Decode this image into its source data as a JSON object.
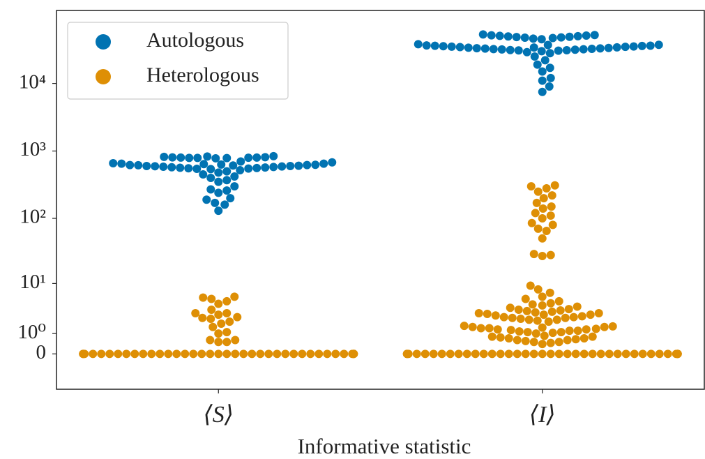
{
  "chart_data": {
    "type": "swarm",
    "x_label": "Informative statistic",
    "categories": [
      "⟨S⟩",
      "⟨I⟩"
    ],
    "yscale": "log1p",
    "ylim": [
      -0.7,
      120000
    ],
    "yticks": [
      0,
      {
        "value": 1,
        "label": "10⁰"
      },
      {
        "value": 10,
        "label": "10¹"
      },
      {
        "value": 100,
        "label": "10²"
      },
      {
        "value": 1000,
        "label": "10³"
      },
      {
        "value": 10000,
        "label": "10⁴"
      }
    ],
    "legend": "upper left",
    "series": [
      {
        "name": "Autologous",
        "color": "#0173b2",
        "values": [
          [
            560,
            565,
            570,
            575,
            580,
            585,
            590,
            595,
            600,
            600,
            605,
            610,
            615,
            620,
            620,
            625,
            630,
            640,
            550,
            555,
            545,
            540,
            650,
            660,
            780,
            790,
            800,
            810,
            820,
            830,
            800,
            790,
            785,
            840,
            805,
            795,
            700,
            680,
            650,
            520,
            500,
            480,
            450,
            420,
            400,
            370,
            350,
            300,
            270,
            260,
            240,
            200,
            190,
            170,
            160,
            130
          ],
          [
            31000,
            31500,
            32000,
            32500,
            33000,
            33500,
            34000,
            34500,
            35000,
            35500,
            36000,
            36500,
            37000,
            30500,
            30000,
            31200,
            32200,
            33200,
            34200,
            35200,
            36200,
            37200,
            30800,
            31800,
            32800,
            33800,
            34800,
            35800,
            29000,
            38000,
            48000,
            49000,
            50000,
            51000,
            52000,
            48500,
            49500,
            50500,
            51500,
            47500,
            47000,
            46000,
            45000,
            53000,
            28000,
            25000,
            22000,
            19000,
            17000,
            15000,
            12000,
            11000,
            9000,
            7500
          ]
        ]
      },
      {
        "name": "Heterologous",
        "color": "#de8f05",
        "values": [
          [
            0,
            0,
            0,
            0,
            0,
            0,
            0,
            0,
            0,
            0,
            0,
            0,
            0,
            0,
            0,
            0,
            0,
            0,
            0,
            0,
            0,
            0,
            0,
            0,
            0,
            0,
            0,
            0,
            0,
            0,
            0,
            0,
            0,
            0,
            0,
            0,
            0,
            0,
            0,
            0,
            0.5,
            0.5,
            0.6,
            0.6,
            1.0,
            1.1,
            1.5,
            1.8,
            2,
            2.3,
            2.4,
            2.5,
            2.8,
            3,
            3,
            3.5,
            4.5,
            5,
            5.5,
            5.8,
            6
          ],
          [
            0,
            0,
            0,
            0,
            0,
            0,
            0,
            0,
            0,
            0,
            0,
            0,
            0,
            0,
            0,
            0,
            0,
            0,
            0,
            0,
            0,
            0,
            0,
            0,
            0,
            0,
            0,
            0,
            0,
            0,
            0,
            0,
            0,
            0,
            0,
            0,
            0,
            0,
            0,
            0,
            0.4,
            0.45,
            0.5,
            0.5,
            0.55,
            0.6,
            0.6,
            0.65,
            0.7,
            0.7,
            0.75,
            0.8,
            0.8,
            0.85,
            1.0,
            1.05,
            1.1,
            1.1,
            1.15,
            1.2,
            1.2,
            1.25,
            1.3,
            1.3,
            1.35,
            1.4,
            1.4,
            1.45,
            1.5,
            1.5,
            1.55,
            1.6,
            2.0,
            2.1,
            2.2,
            2.2,
            2.3,
            2.4,
            2.4,
            2.5,
            2.5,
            2.6,
            2.7,
            2.8,
            2.8,
            2.9,
            3.0,
            3.0,
            3.1,
            3.2,
            3.3,
            3.4,
            3.5,
            3.6,
            3.8,
            4.0,
            4.2,
            4.4,
            4.6,
            5.0,
            5.5,
            6,
            7,
            8,
            9.2,
            27,
            28,
            29,
            50,
            65,
            70,
            80,
            85,
            100,
            110,
            120,
            140,
            150,
            170,
            200,
            220,
            250,
            280,
            300,
            310
          ]
        ]
      }
    ]
  }
}
